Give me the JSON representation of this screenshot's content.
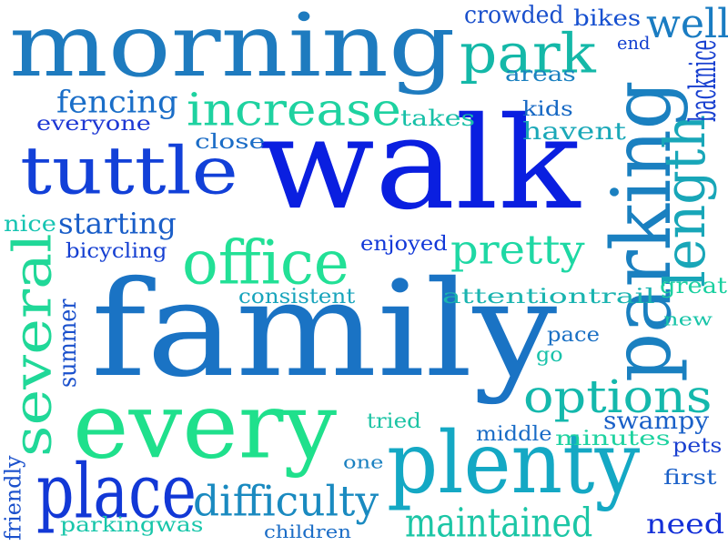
{
  "words": [
    {
      "text": "morning",
      "color": "#1e7bbf"
    },
    {
      "text": "walk",
      "color": "#0a1fe0"
    },
    {
      "text": "family",
      "color": "#1a73c4"
    },
    {
      "text": "parking",
      "color": "#1a80c0"
    },
    {
      "text": "every",
      "color": "#1fe08c"
    },
    {
      "text": "plenty",
      "color": "#14a8c4"
    },
    {
      "text": "tuttle",
      "color": "#1240d8"
    },
    {
      "text": "park",
      "color": "#14b8a8"
    },
    {
      "text": "increase",
      "color": "#1ed2a0"
    },
    {
      "text": "office",
      "color": "#22e096"
    },
    {
      "text": "place",
      "color": "#1238d6"
    },
    {
      "text": "options",
      "color": "#14b8ac"
    },
    {
      "text": "several",
      "color": "#20d898"
    },
    {
      "text": "difficulty",
      "color": "#1a8ac0"
    },
    {
      "text": "pretty",
      "color": "#1ed8a4"
    },
    {
      "text": "length",
      "color": "#18a6b8"
    },
    {
      "text": "maintained",
      "color": "#1cc6a6"
    },
    {
      "text": "starting",
      "color": "#1a5ec8"
    },
    {
      "text": "fencing",
      "color": "#1a6ec8"
    },
    {
      "text": "well",
      "color": "#1a7cc2"
    },
    {
      "text": "crowded",
      "color": "#1a50cc"
    },
    {
      "text": "bikes",
      "color": "#1650d0"
    },
    {
      "text": "end",
      "color": "#1440d0"
    },
    {
      "text": "areas",
      "color": "#1a80c0"
    },
    {
      "text": "backnice",
      "color": "#1840d0"
    },
    {
      "text": "kids",
      "color": "#1668c4"
    },
    {
      "text": "takes",
      "color": "#18c0a8"
    },
    {
      "text": "havent",
      "color": "#1aa8b8"
    },
    {
      "text": "great",
      "color": "#1ad0a0"
    },
    {
      "text": "everyone",
      "color": "#1e38d4"
    },
    {
      "text": "close",
      "color": "#1a6cc6"
    },
    {
      "text": "nice",
      "color": "#16c4b2"
    },
    {
      "text": "bicycling",
      "color": "#1640d2"
    },
    {
      "text": "enjoyed",
      "color": "#1238d8"
    },
    {
      "text": "consistent",
      "color": "#18a4bc"
    },
    {
      "text": "attentiontrail",
      "color": "#1ab4b0"
    },
    {
      "text": "summer",
      "color": "#1a50cc"
    },
    {
      "text": "new",
      "color": "#18c4a8"
    },
    {
      "text": "pace",
      "color": "#1a70c4"
    },
    {
      "text": "go",
      "color": "#18c2aa"
    },
    {
      "text": "tried",
      "color": "#1cc4a4"
    },
    {
      "text": "middle",
      "color": "#1a6cc6"
    },
    {
      "text": "swampy",
      "color": "#1a60c8"
    },
    {
      "text": "minutes",
      "color": "#1ed2a0"
    },
    {
      "text": "pets",
      "color": "#1a40d0"
    },
    {
      "text": "one",
      "color": "#1a80c0"
    },
    {
      "text": "first",
      "color": "#1a60c8"
    },
    {
      "text": "friendly",
      "color": "#1a50cc"
    },
    {
      "text": "parkingwas",
      "color": "#18c6aa"
    },
    {
      "text": "children",
      "color": "#1a6cc6"
    },
    {
      "text": "need",
      "color": "#1430d8"
    }
  ]
}
